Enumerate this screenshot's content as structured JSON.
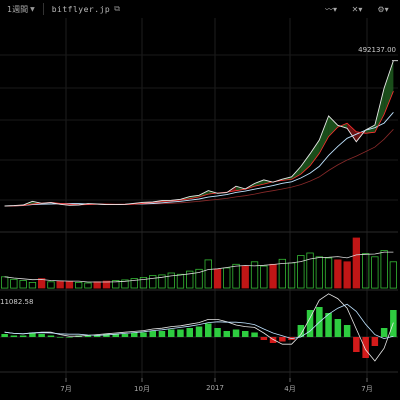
{
  "toolbar": {
    "period": "1週間",
    "symbol": "bitflyer.jp",
    "icons": [
      "chevron-down-icon",
      "link-icon",
      "line-tool-icon",
      "crosshair-icon",
      "settings-icon"
    ]
  },
  "price_last": "492137.00",
  "osc_value": "11082.58",
  "x_axis": [
    "7月",
    "10月",
    "2017",
    "4月",
    "7月"
  ],
  "colors": {
    "up": "#35b935",
    "down": "#d41b1b",
    "line": "#bfe3ff"
  },
  "chart_data": [
    {
      "type": "line",
      "title": "",
      "x_ticks": [
        "7月",
        "10月",
        "2017",
        "4月",
        "7月"
      ],
      "series": [
        {
          "name": "",
          "values": [
            58000,
            59000,
            61000,
            72000,
            66000,
            68000,
            63000,
            60000,
            61000,
            65000,
            64000,
            62000,
            62000,
            63000,
            66000,
            69000,
            70000,
            74000,
            75000,
            78000,
            86000,
            90000,
            104000,
            96000,
            98000,
            117000,
            109000,
            125000,
            136000,
            129000,
            138000,
            145000,
            176000,
            214000,
            255000,
            327000,
            299000,
            290000,
            250000,
            285000,
            300000,
            410000,
            492137
          ]
        }
      ]
    },
    {
      "type": "bar",
      "series": [
        {
          "name": "",
          "values": [
            18,
            14,
            12,
            9,
            15,
            10,
            11,
            10,
            9,
            8,
            10,
            11,
            12,
            13,
            15,
            17,
            20,
            21,
            24,
            22,
            27,
            30,
            45,
            30,
            32,
            38,
            35,
            42,
            35,
            38,
            46,
            40,
            52,
            56,
            50,
            48,
            45,
            42,
            80,
            55,
            50,
            60,
            42
          ]
        }
      ]
    },
    {
      "type": "bar",
      "series": [
        {
          "name": "",
          "values": [
            2,
            1,
            1,
            3,
            2,
            1,
            0,
            0,
            1,
            1,
            1,
            2,
            2,
            2,
            3,
            3,
            4,
            4,
            5,
            5,
            6,
            7,
            9,
            6,
            4,
            5,
            4,
            3,
            -2,
            -4,
            -3,
            -2,
            8,
            18,
            20,
            16,
            12,
            8,
            -10,
            -14,
            -6,
            6,
            18
          ]
        }
      ]
    }
  ]
}
